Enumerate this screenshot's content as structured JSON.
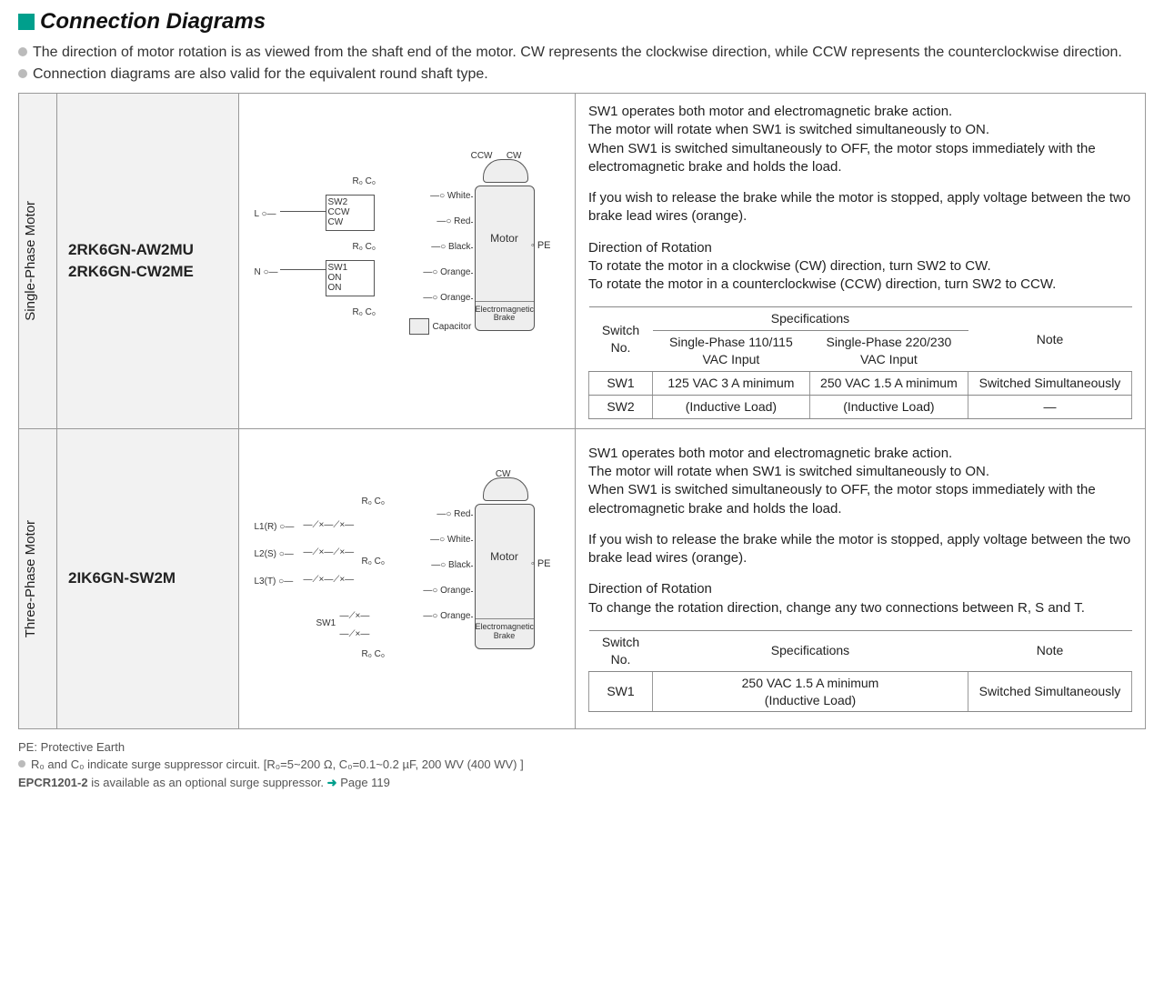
{
  "title": "Connection Diagrams",
  "intro": [
    "The direction of motor rotation is as viewed from the shaft end of the motor. CW represents the clockwise direction, while CCW represents the counterclockwise direction.",
    "Connection diagrams are also valid for the equivalent round shaft type."
  ],
  "rows": [
    {
      "vlabel": "Single-Phase Motor",
      "models": [
        "2RK6GN-AW2MU",
        "2RK6GN-CW2ME"
      ],
      "diagram": {
        "top_labels": [
          "CCW",
          "CW"
        ],
        "left_terminals": [
          "L",
          "N"
        ],
        "switches": [
          {
            "name": "SW2",
            "lines": [
              "CCW",
              "CW"
            ]
          },
          {
            "name": "SW1",
            "lines": [
              "ON",
              "ON"
            ]
          }
        ],
        "rc_label": "R₀  C₀",
        "wire_colors": [
          "White",
          "Red",
          "Black",
          "Orange",
          "Orange"
        ],
        "motor_label": "Motor",
        "brake_label": "Electromagnetic Brake",
        "pe": "PE",
        "capacitor": "Capacitor"
      },
      "desc": [
        "SW1 operates both motor and electromagnetic brake action.\nThe motor will rotate when SW1 is switched simultaneously to ON.\nWhen SW1 is switched simultaneously to OFF, the motor stops immediately with the electromagnetic brake and holds the load.",
        "If you wish to release the brake while the motor is stopped, apply voltage between the two brake lead wires (orange).",
        "Direction of Rotation\nTo rotate the motor in a clockwise (CW) direction, turn SW2 to CW.\nTo rotate the motor in a counterclockwise (CCW) direction, turn SW2 to CCW."
      ],
      "spec_table": {
        "type": "dual",
        "head1": "Switch No.",
        "head2": "Specifications",
        "sub1": "Single-Phase 110/115 VAC Input",
        "sub2": "Single-Phase 220/230 VAC Input",
        "head3": "Note",
        "rows": [
          {
            "c1": "SW1",
            "c2": "125 VAC 3 A minimum",
            "c3": "250 VAC 1.5 A minimum",
            "c4": "Switched Simultaneously"
          },
          {
            "c1": "SW2",
            "c2": "(Inductive Load)",
            "c3": "(Inductive Load)",
            "c4": "—"
          }
        ]
      }
    },
    {
      "vlabel": "Three-Phase Motor",
      "models": [
        "2IK6GN-SW2M"
      ],
      "diagram": {
        "top_labels": [
          "CW"
        ],
        "left_terminals": [
          "L1(R)",
          "L2(S)",
          "L3(T)"
        ],
        "switches": [
          {
            "name": "SW1",
            "lines": []
          }
        ],
        "rc_label": "R₀  C₀",
        "wire_colors": [
          "Red",
          "White",
          "Black",
          "Orange",
          "Orange"
        ],
        "motor_label": "Motor",
        "brake_label": "Electromagnetic Brake",
        "pe": "PE",
        "capacitor": ""
      },
      "desc": [
        "SW1 operates both motor and electromagnetic brake action.\nThe motor will rotate when SW1 is switched simultaneously to ON.\nWhen SW1 is switched simultaneously to OFF, the motor stops immediately with the electromagnetic brake and holds the load.",
        "If you wish to release the brake while the motor is stopped, apply voltage between the two brake lead wires (orange).",
        "Direction of Rotation\nTo change the rotation direction, change any two connections between R, S and T."
      ],
      "spec_table": {
        "type": "single",
        "head1": "Switch No.",
        "head2": "Specifications",
        "head3": "Note",
        "rows": [
          {
            "c1": "SW1",
            "c2": "250 VAC 1.5 A minimum\n(Inductive Load)",
            "c3": "Switched Simultaneously"
          }
        ]
      }
    }
  ],
  "footer": {
    "pe": "PE: Protective Earth",
    "rc": "R₀ and C₀ indicate surge suppressor circuit. [R₀=5~200 Ω, C₀=0.1~0.2 µF, 200 WV  (400 WV) ]",
    "epcr_bold": "EPCR1201-2",
    "epcr_rest": " is available as an optional surge suppressor. ",
    "page": "Page 119"
  }
}
